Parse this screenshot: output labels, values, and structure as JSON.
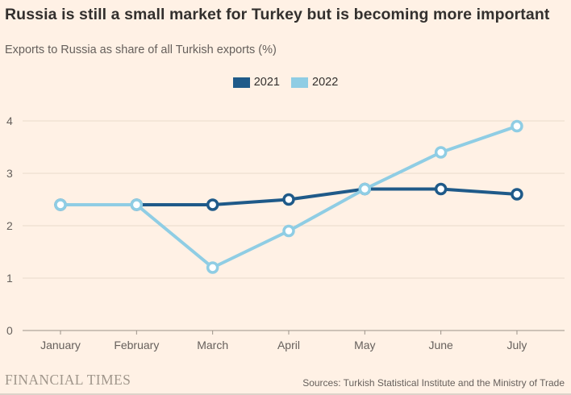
{
  "header": {
    "title": "Russia is still a small market for Turkey but is becoming more important",
    "subtitle": "Exports to Russia as share of all Turkish exports (%)"
  },
  "chart_data": {
    "type": "line",
    "title": "Russia is still a small market for Turkey but is becoming more important",
    "subtitle": "Exports to Russia as share of all Turkish exports (%)",
    "xlabel": "",
    "ylabel": "",
    "categories": [
      "January",
      "February",
      "March",
      "April",
      "May",
      "June",
      "July"
    ],
    "series": [
      {
        "name": "2021",
        "color": "#1f5a89",
        "values": [
          2.4,
          2.4,
          2.4,
          2.5,
          2.7,
          2.7,
          2.6
        ]
      },
      {
        "name": "2022",
        "color": "#8fcde4",
        "values": [
          2.4,
          2.4,
          1.2,
          1.9,
          2.7,
          3.4,
          3.9
        ]
      }
    ],
    "ylim": [
      0,
      4
    ],
    "yticks": [
      0,
      1,
      2,
      3,
      4
    ],
    "grid": true,
    "legend_position": "top-center",
    "marker": "open-circle"
  },
  "footer": {
    "brand": "FINANCIAL TIMES",
    "source": "Sources: Turkish Statistical Institute and the Ministry of Trade"
  },
  "colors": {
    "background": "#fff1e5",
    "title_text": "#33302e",
    "muted_text": "#66605c",
    "gridline": "#e9dacb",
    "axis_line": "#9b9289",
    "marker_fill": "#ffffff",
    "series_2021": "#1f5a89",
    "series_2022": "#8fcde4"
  }
}
